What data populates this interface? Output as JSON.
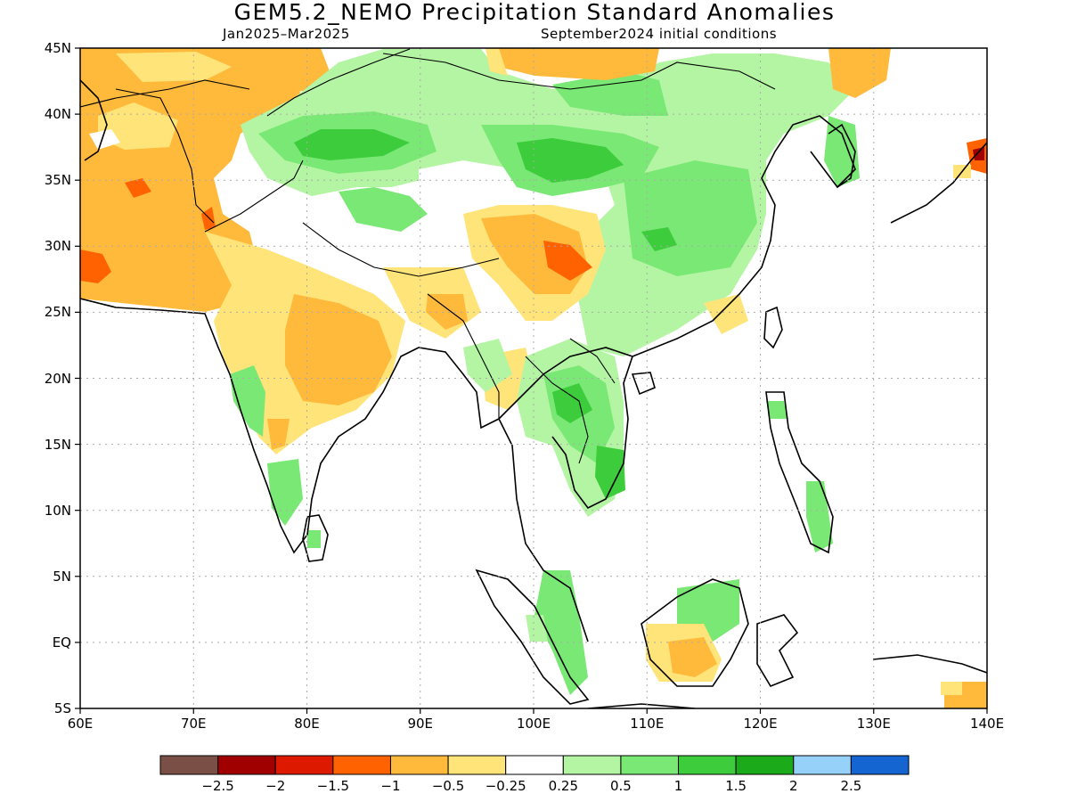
{
  "title": "GEM5.2_NEMO Precipitation Standard Anomalies",
  "subtitle_left": "Jan2025–Mar2025",
  "subtitle_right": "September2024 initial conditions",
  "lat_labels": [
    "45N",
    "40N",
    "35N",
    "30N",
    "25N",
    "20N",
    "15N",
    "10N",
    "5N",
    "EQ",
    "5S"
  ],
  "lon_labels": [
    "60E",
    "70E",
    "80E",
    "90E",
    "100E",
    "110E",
    "120E",
    "130E",
    "140E"
  ],
  "colorbar": {
    "colors": [
      "#7a4f45",
      "#a10000",
      "#dd1a00",
      "#ff6200",
      "#ffba3c",
      "#ffe47a",
      "#ffffff",
      "#b4f5a4",
      "#7ae874",
      "#3ccc3c",
      "#1aaa1a",
      "#96d1fa",
      "#1464d2"
    ],
    "labels": [
      "−2.5",
      "−2",
      "−1.5",
      "−1",
      "−0.5",
      "−0.25",
      "0.25",
      "0.5",
      "1",
      "1.5",
      "2",
      "2.5"
    ]
  },
  "map": {
    "lon_range": [
      60,
      140
    ],
    "lat_range": [
      -5,
      45
    ],
    "grid": "dotted"
  }
}
